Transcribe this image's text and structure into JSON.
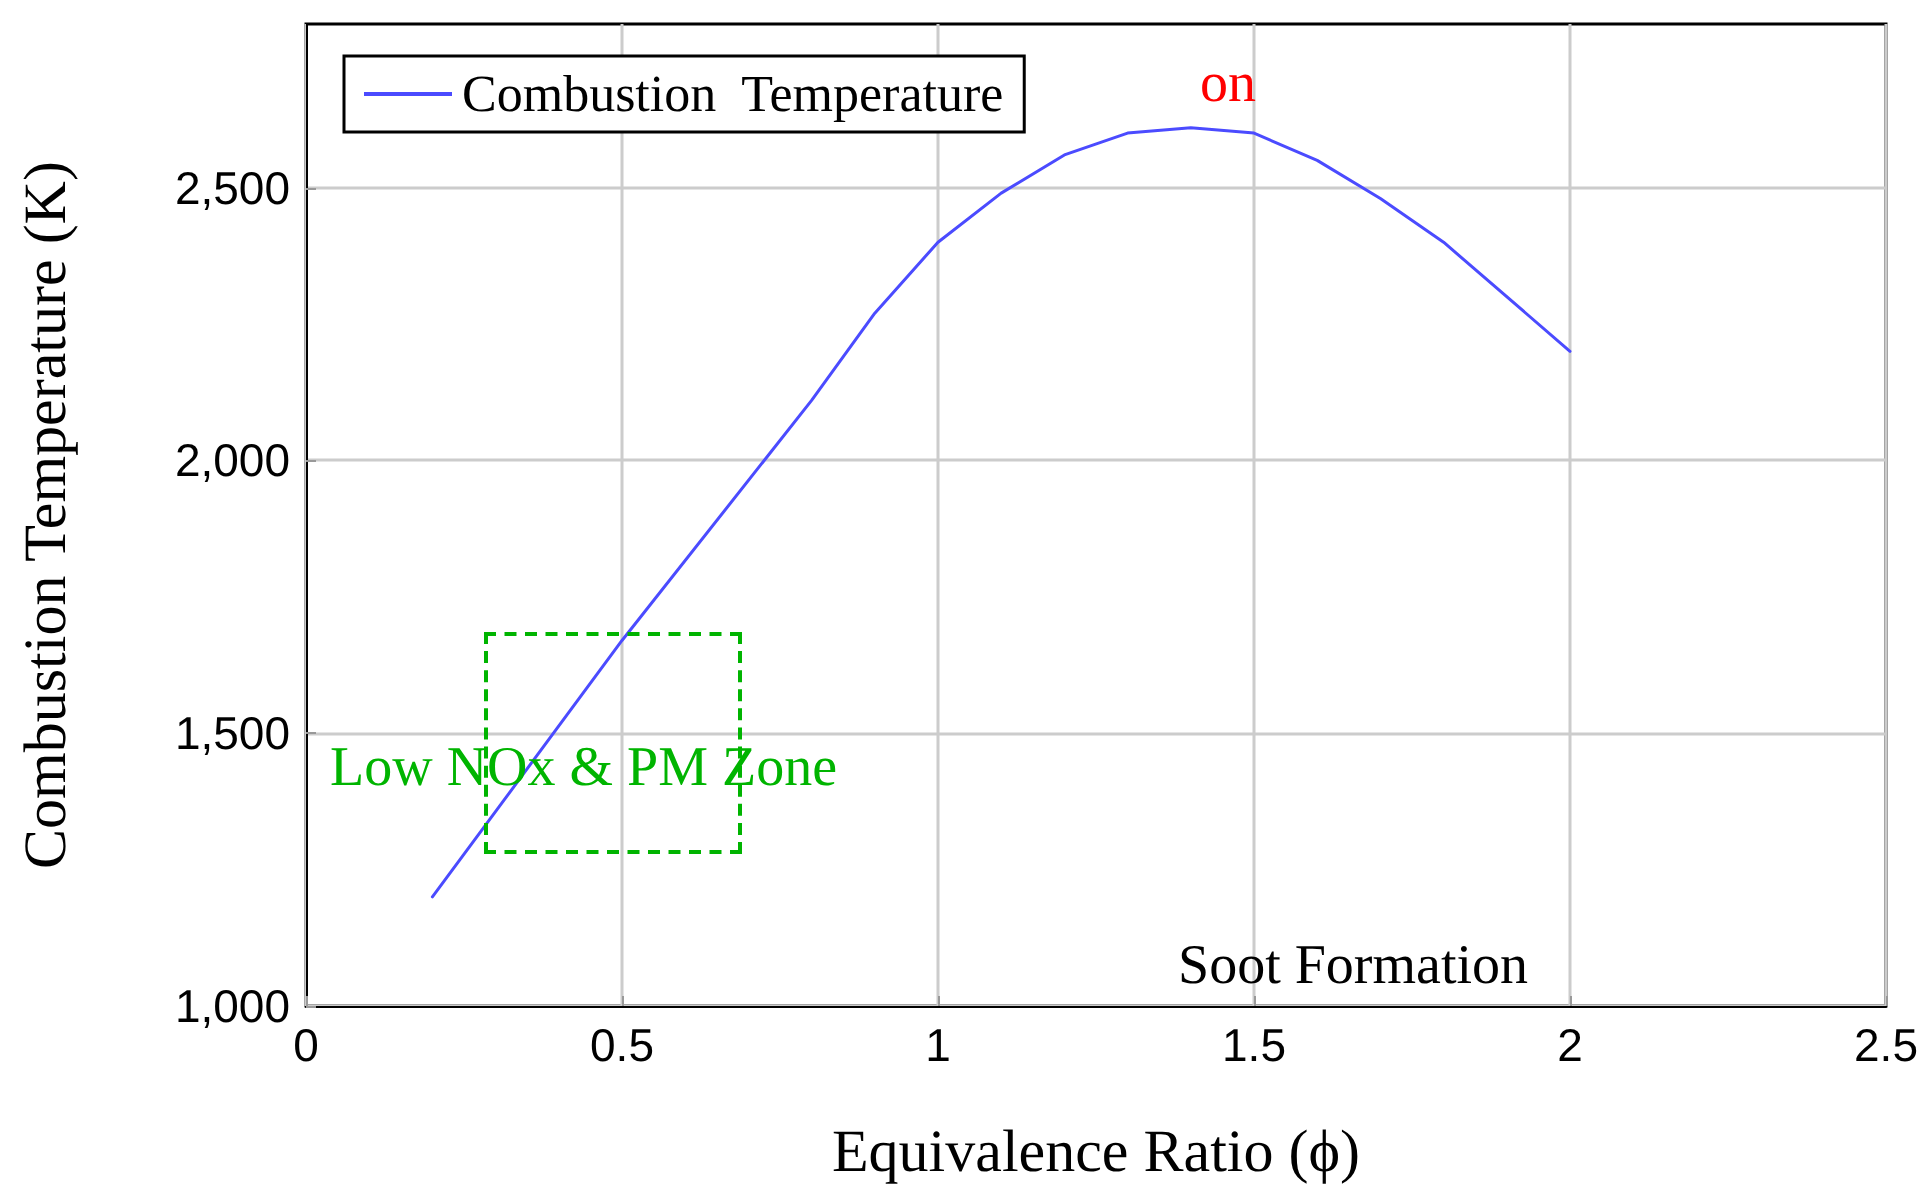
{
  "chart_data": {
    "type": "line",
    "xlabel": "Equivalence Ratio (ϕ)",
    "ylabel": "Combustion Temperature (K)",
    "series": [
      {
        "name": "Combustion  Temperature",
        "color": "#4b4bff",
        "x": [
          0.2,
          0.5,
          0.8,
          0.9,
          1.0,
          1.1,
          1.2,
          1.3,
          1.4,
          1.5,
          1.6,
          1.7,
          1.8,
          2.0
        ],
        "values": [
          1200,
          1670,
          2110,
          2270,
          2400,
          2490,
          2560,
          2600,
          2610,
          2600,
          2550,
          2480,
          2400,
          2200
        ]
      }
    ],
    "annotations": [
      "Low NOx & PM Zone",
      "Soot Formation",
      "on"
    ],
    "xlim": [
      0,
      2.5
    ],
    "xticks": [
      0,
      0.5,
      1,
      1.5,
      2,
      2.5
    ],
    "ylim": [
      1000,
      2800
    ],
    "yticks": [
      {
        "value": 1000,
        "label": "1,000"
      },
      {
        "value": 1500,
        "label": "1,500"
      },
      {
        "value": 2000,
        "label": "2,000"
      },
      {
        "value": 2500,
        "label": "2,500"
      }
    ],
    "grid": true,
    "legend": "top left",
    "marker": "none",
    "line_style": "solid"
  }
}
